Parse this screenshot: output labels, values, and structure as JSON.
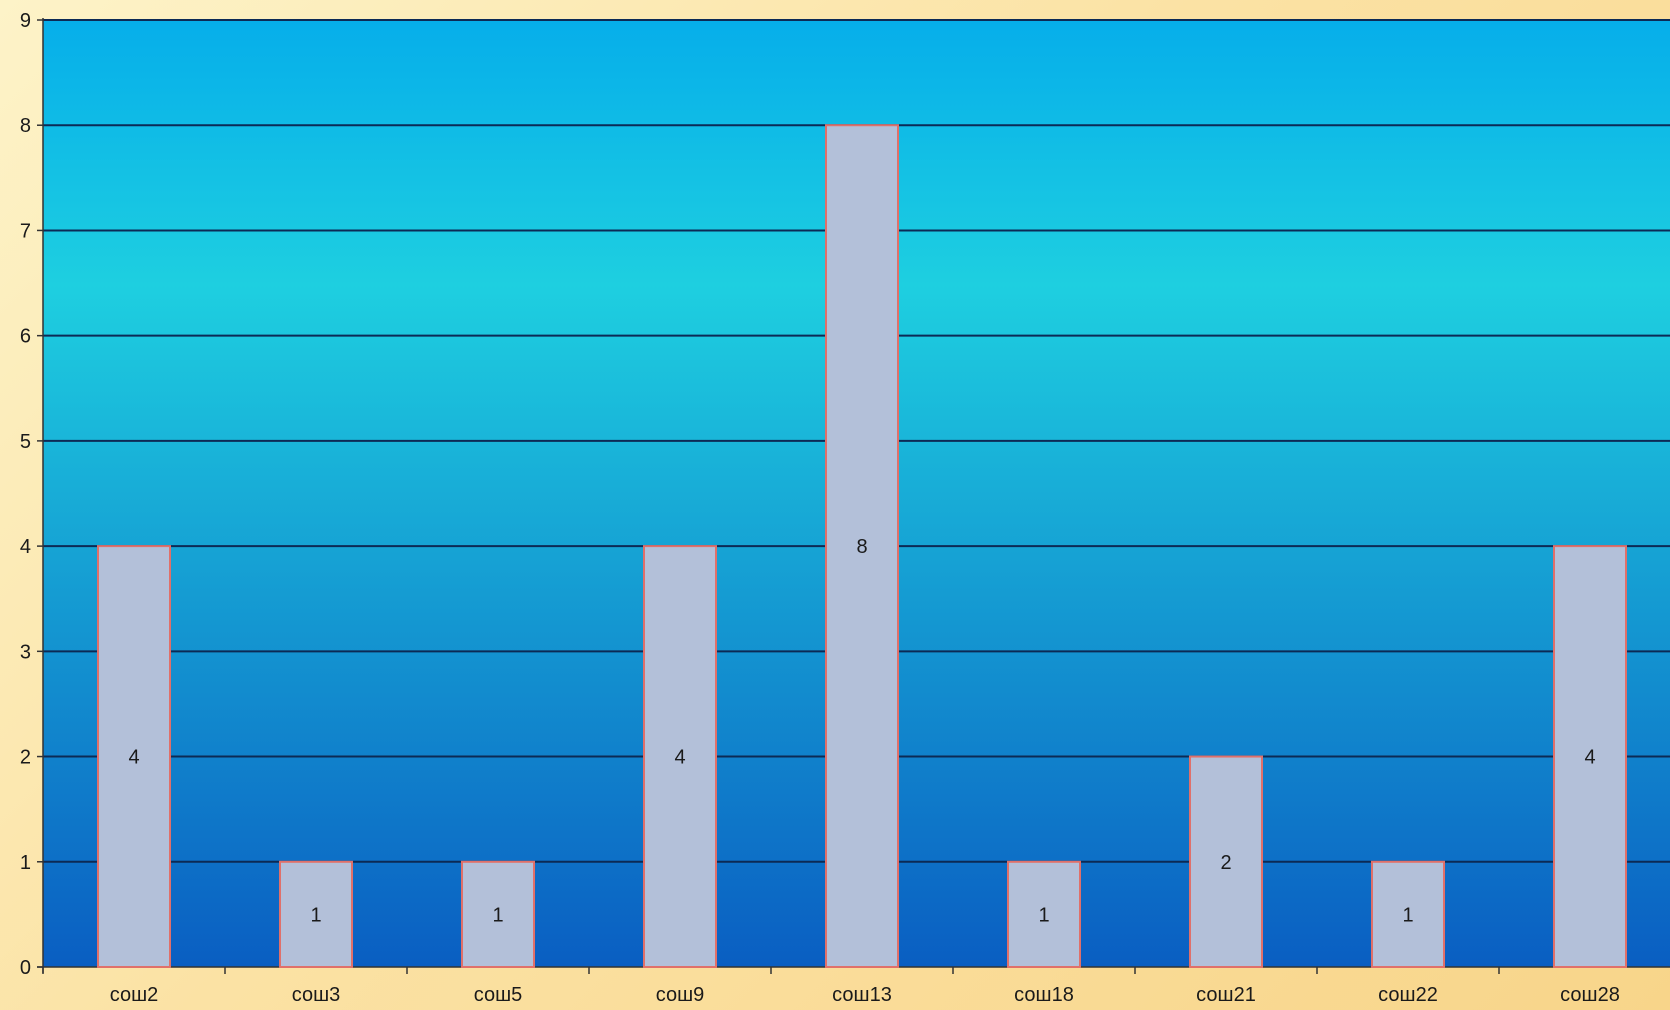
{
  "chart_data": {
    "type": "bar",
    "categories": [
      "сош2",
      "сош3",
      "сош5",
      "сош9",
      "сош13",
      "сош18",
      "сош21",
      "сош22",
      "сош28"
    ],
    "values": [
      4,
      1,
      1,
      4,
      8,
      1,
      2,
      1,
      4
    ],
    "data_labels": [
      "4",
      "1",
      "1",
      "4",
      "8",
      "1",
      "2",
      "1",
      "4"
    ],
    "y_ticks": [
      "0",
      "1",
      "2",
      "3",
      "4",
      "5",
      "6",
      "7",
      "8",
      "9"
    ],
    "ylim": [
      0,
      9
    ],
    "grid": true,
    "legend": "none",
    "colors": {
      "bar_fill": "#b3c0d9",
      "bar_stroke": "#e0706a",
      "grid": "#0c2a55",
      "plot_top": "#06aeea",
      "plot_mid": "#1ecfe0",
      "plot_bottom": "#0a5ec2",
      "text": "#1a1a1a"
    }
  }
}
